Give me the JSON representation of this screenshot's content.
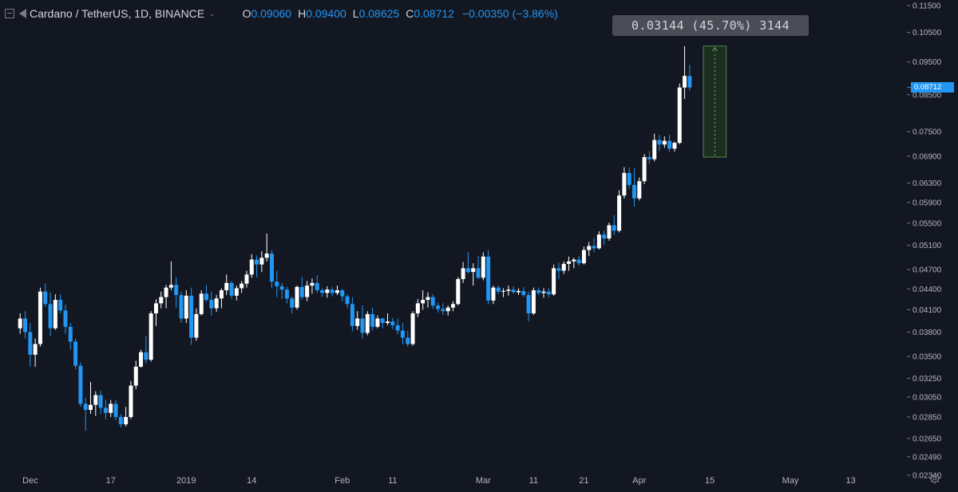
{
  "legend": {
    "symbol": "Cardano / TetherUS, 1D, BINANCE",
    "open_label": "O",
    "open": "0.09060",
    "high_label": "H",
    "high": "0.09400",
    "low_label": "L",
    "low": "0.08625",
    "close_label": "C",
    "close": "0.08712",
    "change": "−0.00350 (−3.86%)"
  },
  "measure_tooltip": "0.03144 (45.70%) 3144",
  "last_price_label": "0.08712",
  "icons": {
    "settings": "gear-icon",
    "interval_menu": "chevron-down-icon",
    "legend_toggle": "collapse-icon",
    "flag": "flag-icon"
  },
  "colors": {
    "background": "#131722",
    "up_candle": "#ffffff",
    "down_candle": "#2196f3",
    "measure_fill": "#1b2e1f",
    "measure_border": "#4c8c4a",
    "price_tag": "#2196f3"
  },
  "chart_data": {
    "type": "candlestick",
    "title": "Cardano / TetherUS, 1D, BINANCE",
    "y_scale": "log",
    "ylim": [
      0.0224,
      0.1172
    ],
    "y_ticks": [
      "0.11500",
      "0.10500",
      "0.09500",
      "0.08500",
      "0.07500",
      "0.06900",
      "0.06300",
      "0.05900",
      "0.05500",
      "0.05100",
      "0.04700",
      "0.04400",
      "0.04100",
      "0.03800",
      "0.03500",
      "0.03250",
      "0.03050",
      "0.02850",
      "0.02650",
      "0.02490",
      "0.02340"
    ],
    "x_ticks": [
      {
        "label": "Dec",
        "date": "2018-12-01"
      },
      {
        "label": "17",
        "date": "2018-12-17"
      },
      {
        "label": "2019",
        "date": "2019-01-01"
      },
      {
        "label": "14",
        "date": "2019-01-14"
      },
      {
        "label": "Feb",
        "date": "2019-02-01"
      },
      {
        "label": "11",
        "date": "2019-02-11"
      },
      {
        "label": "Mar",
        "date": "2019-03-01"
      },
      {
        "label": "11",
        "date": "2019-03-11"
      },
      {
        "label": "21",
        "date": "2019-03-21"
      },
      {
        "label": "Apr",
        "date": "2019-04-01"
      },
      {
        "label": "15",
        "date": "2019-04-15"
      },
      {
        "label": "May",
        "date": "2019-05-01"
      },
      {
        "label": "13",
        "date": "2019-05-13"
      }
    ],
    "start_date": "2018-11-29",
    "x_range_dates": [
      "2018-11-25",
      "2019-05-24"
    ],
    "ohlc": [
      [
        0.0385,
        0.0405,
        0.0378,
        0.0398
      ],
      [
        0.0398,
        0.0408,
        0.0372,
        0.038
      ],
      [
        0.038,
        0.0392,
        0.0338,
        0.0352
      ],
      [
        0.0352,
        0.0372,
        0.0338,
        0.0365
      ],
      [
        0.0365,
        0.0442,
        0.0362,
        0.0436
      ],
      [
        0.0436,
        0.0448,
        0.0414,
        0.0418
      ],
      [
        0.0418,
        0.0435,
        0.0375,
        0.0385
      ],
      [
        0.0385,
        0.0432,
        0.0383,
        0.0424
      ],
      [
        0.0424,
        0.0432,
        0.0405,
        0.0409
      ],
      [
        0.0409,
        0.0417,
        0.0378,
        0.0387
      ],
      [
        0.0387,
        0.0392,
        0.0358,
        0.0368
      ],
      [
        0.0368,
        0.0372,
        0.0335,
        0.0339
      ],
      [
        0.0339,
        0.0343,
        0.0295,
        0.0298
      ],
      [
        0.0298,
        0.0304,
        0.0272,
        0.0292
      ],
      [
        0.0292,
        0.0321,
        0.0288,
        0.0297
      ],
      [
        0.0297,
        0.0311,
        0.0286,
        0.0307
      ],
      [
        0.0307,
        0.0312,
        0.0288,
        0.0294
      ],
      [
        0.0294,
        0.0302,
        0.0283,
        0.0289
      ],
      [
        0.0289,
        0.0302,
        0.0285,
        0.0298
      ],
      [
        0.0298,
        0.0302,
        0.0282,
        0.0285
      ],
      [
        0.0285,
        0.0288,
        0.0275,
        0.0278
      ],
      [
        0.0278,
        0.0295,
        0.0276,
        0.0285
      ],
      [
        0.0285,
        0.0322,
        0.0283,
        0.0317
      ],
      [
        0.0317,
        0.0345,
        0.0313,
        0.0338
      ],
      [
        0.0338,
        0.0358,
        0.0337,
        0.0355
      ],
      [
        0.0355,
        0.0375,
        0.0342,
        0.0346
      ],
      [
        0.0346,
        0.0408,
        0.0344,
        0.0405
      ],
      [
        0.0405,
        0.0425,
        0.0388,
        0.0419
      ],
      [
        0.0419,
        0.0436,
        0.0412,
        0.0428
      ],
      [
        0.0428,
        0.0446,
        0.0412,
        0.0442
      ],
      [
        0.0442,
        0.0483,
        0.0438,
        0.0446
      ],
      [
        0.0446,
        0.0458,
        0.0413,
        0.0431
      ],
      [
        0.0431,
        0.0436,
        0.0392,
        0.0398
      ],
      [
        0.0398,
        0.0438,
        0.0392,
        0.043
      ],
      [
        0.043,
        0.0442,
        0.0364,
        0.0373
      ],
      [
        0.0373,
        0.0412,
        0.0369,
        0.0404
      ],
      [
        0.0404,
        0.0438,
        0.0402,
        0.0433
      ],
      [
        0.0433,
        0.0446,
        0.0421,
        0.0424
      ],
      [
        0.0424,
        0.0436,
        0.0402,
        0.0412
      ],
      [
        0.0412,
        0.0431,
        0.0407,
        0.0426
      ],
      [
        0.0426,
        0.0441,
        0.0412,
        0.0438
      ],
      [
        0.0438,
        0.0462,
        0.0431,
        0.0449
      ],
      [
        0.0449,
        0.0452,
        0.0425,
        0.043
      ],
      [
        0.043,
        0.0445,
        0.0423,
        0.0441
      ],
      [
        0.0441,
        0.0452,
        0.0434,
        0.0448
      ],
      [
        0.0448,
        0.0468,
        0.0442,
        0.0462
      ],
      [
        0.0462,
        0.0495,
        0.0457,
        0.0486
      ],
      [
        0.0486,
        0.0493,
        0.0458,
        0.0478
      ],
      [
        0.0478,
        0.05,
        0.0466,
        0.0489
      ],
      [
        0.0489,
        0.0531,
        0.0483,
        0.0496
      ],
      [
        0.0496,
        0.0502,
        0.0441,
        0.0451
      ],
      [
        0.0451,
        0.0468,
        0.0428,
        0.0444
      ],
      [
        0.0444,
        0.0449,
        0.0425,
        0.0439
      ],
      [
        0.0439,
        0.0443,
        0.0419,
        0.0426
      ],
      [
        0.0426,
        0.0429,
        0.0405,
        0.0413
      ],
      [
        0.0413,
        0.0445,
        0.041,
        0.0443
      ],
      [
        0.0443,
        0.0458,
        0.0424,
        0.0428
      ],
      [
        0.0428,
        0.0452,
        0.0422,
        0.0445
      ],
      [
        0.0445,
        0.0456,
        0.0433,
        0.0449
      ],
      [
        0.0449,
        0.0461,
        0.0434,
        0.0438
      ],
      [
        0.0438,
        0.0441,
        0.0428,
        0.0434
      ],
      [
        0.0434,
        0.0444,
        0.0427,
        0.0439
      ],
      [
        0.0439,
        0.0443,
        0.0429,
        0.0434
      ],
      [
        0.0434,
        0.0445,
        0.0431,
        0.0438
      ],
      [
        0.0438,
        0.044,
        0.0422,
        0.0429
      ],
      [
        0.0429,
        0.0432,
        0.0412,
        0.0418
      ],
      [
        0.0418,
        0.0428,
        0.0381,
        0.0388
      ],
      [
        0.0388,
        0.0408,
        0.0383,
        0.0398
      ],
      [
        0.0398,
        0.0416,
        0.0372,
        0.0379
      ],
      [
        0.0379,
        0.0408,
        0.0376,
        0.0404
      ],
      [
        0.0404,
        0.0413,
        0.0382,
        0.0387
      ],
      [
        0.0387,
        0.0402,
        0.0385,
        0.0398
      ],
      [
        0.0398,
        0.0399,
        0.0385,
        0.0392
      ],
      [
        0.0392,
        0.0405,
        0.0389,
        0.0394
      ],
      [
        0.0394,
        0.0399,
        0.0384,
        0.0389
      ],
      [
        0.0389,
        0.0398,
        0.0377,
        0.0382
      ],
      [
        0.0382,
        0.0392,
        0.0365,
        0.0373
      ],
      [
        0.0373,
        0.0382,
        0.0362,
        0.0365
      ],
      [
        0.0365,
        0.0408,
        0.0363,
        0.0405
      ],
      [
        0.0405,
        0.0425,
        0.04,
        0.0419
      ],
      [
        0.0419,
        0.0438,
        0.041,
        0.0424
      ],
      [
        0.0424,
        0.0435,
        0.0413,
        0.0428
      ],
      [
        0.0428,
        0.0432,
        0.0411,
        0.0416
      ],
      [
        0.0416,
        0.042,
        0.0406,
        0.0411
      ],
      [
        0.0411,
        0.0419,
        0.0403,
        0.0408
      ],
      [
        0.0408,
        0.0416,
        0.0402,
        0.0413
      ],
      [
        0.0413,
        0.0422,
        0.0408,
        0.0418
      ],
      [
        0.0418,
        0.0458,
        0.0416,
        0.0455
      ],
      [
        0.0455,
        0.0482,
        0.0449,
        0.0472
      ],
      [
        0.0472,
        0.0498,
        0.0463,
        0.0466
      ],
      [
        0.0466,
        0.048,
        0.0445,
        0.0472
      ],
      [
        0.0472,
        0.0492,
        0.0455,
        0.0457
      ],
      [
        0.0457,
        0.0498,
        0.0453,
        0.0491
      ],
      [
        0.0491,
        0.0502,
        0.0418,
        0.0423
      ],
      [
        0.0423,
        0.0445,
        0.0418,
        0.0442
      ],
      [
        0.0442,
        0.0445,
        0.0432,
        0.0436
      ],
      [
        0.0436,
        0.0441,
        0.0428,
        0.0437
      ],
      [
        0.0437,
        0.0445,
        0.043,
        0.0439
      ],
      [
        0.0439,
        0.0444,
        0.0433,
        0.0435
      ],
      [
        0.0435,
        0.0441,
        0.0431,
        0.0437
      ],
      [
        0.0437,
        0.0443,
        0.0428,
        0.0431
      ],
      [
        0.0431,
        0.0436,
        0.0394,
        0.0405
      ],
      [
        0.0405,
        0.0442,
        0.0403,
        0.0438
      ],
      [
        0.0438,
        0.0442,
        0.0431,
        0.0434
      ],
      [
        0.0434,
        0.0441,
        0.0427,
        0.0436
      ],
      [
        0.0436,
        0.0441,
        0.0428,
        0.0432
      ],
      [
        0.0432,
        0.0478,
        0.043,
        0.0472
      ],
      [
        0.0472,
        0.0481,
        0.0455,
        0.0468
      ],
      [
        0.0468,
        0.0483,
        0.0463,
        0.0479
      ],
      [
        0.0479,
        0.0491,
        0.0468,
        0.0483
      ],
      [
        0.0483,
        0.0489,
        0.0472,
        0.0486
      ],
      [
        0.0486,
        0.0492,
        0.0476,
        0.048
      ],
      [
        0.048,
        0.0508,
        0.0478,
        0.0502
      ],
      [
        0.0502,
        0.0516,
        0.0492,
        0.0509
      ],
      [
        0.0509,
        0.0523,
        0.0498,
        0.0505
      ],
      [
        0.0505,
        0.0535,
        0.0503,
        0.0529
      ],
      [
        0.0529,
        0.0536,
        0.0511,
        0.0522
      ],
      [
        0.0522,
        0.0551,
        0.0518,
        0.0546
      ],
      [
        0.0546,
        0.0565,
        0.0528,
        0.0536
      ],
      [
        0.0536,
        0.0615,
        0.0533,
        0.0604
      ],
      [
        0.0604,
        0.0665,
        0.0598,
        0.0652
      ],
      [
        0.0652,
        0.0664,
        0.0618,
        0.0626
      ],
      [
        0.0626,
        0.0662,
        0.0582,
        0.0598
      ],
      [
        0.0598,
        0.0642,
        0.0594,
        0.0634
      ],
      [
        0.0634,
        0.0695,
        0.0628,
        0.0688
      ],
      [
        0.0688,
        0.0702,
        0.0672,
        0.0683
      ],
      [
        0.0683,
        0.0745,
        0.0678,
        0.0729
      ],
      [
        0.0729,
        0.0742,
        0.0702,
        0.0718
      ],
      [
        0.0718,
        0.0738,
        0.071,
        0.0727
      ],
      [
        0.0727,
        0.0742,
        0.07,
        0.0708
      ],
      [
        0.0708,
        0.0725,
        0.0701,
        0.0722
      ],
      [
        0.0722,
        0.0883,
        0.0719,
        0.0871
      ],
      [
        0.0871,
        0.1002,
        0.0838,
        0.0906
      ],
      [
        0.0906,
        0.094,
        0.08625,
        0.08712
      ]
    ],
    "measure": {
      "from_price": 0.0688,
      "to_price": 0.10024,
      "from_date": "2019-04-15",
      "to_date": "2019-04-17",
      "text": "0.03144 (45.70%) 3144"
    },
    "last_price": 0.08712
  }
}
